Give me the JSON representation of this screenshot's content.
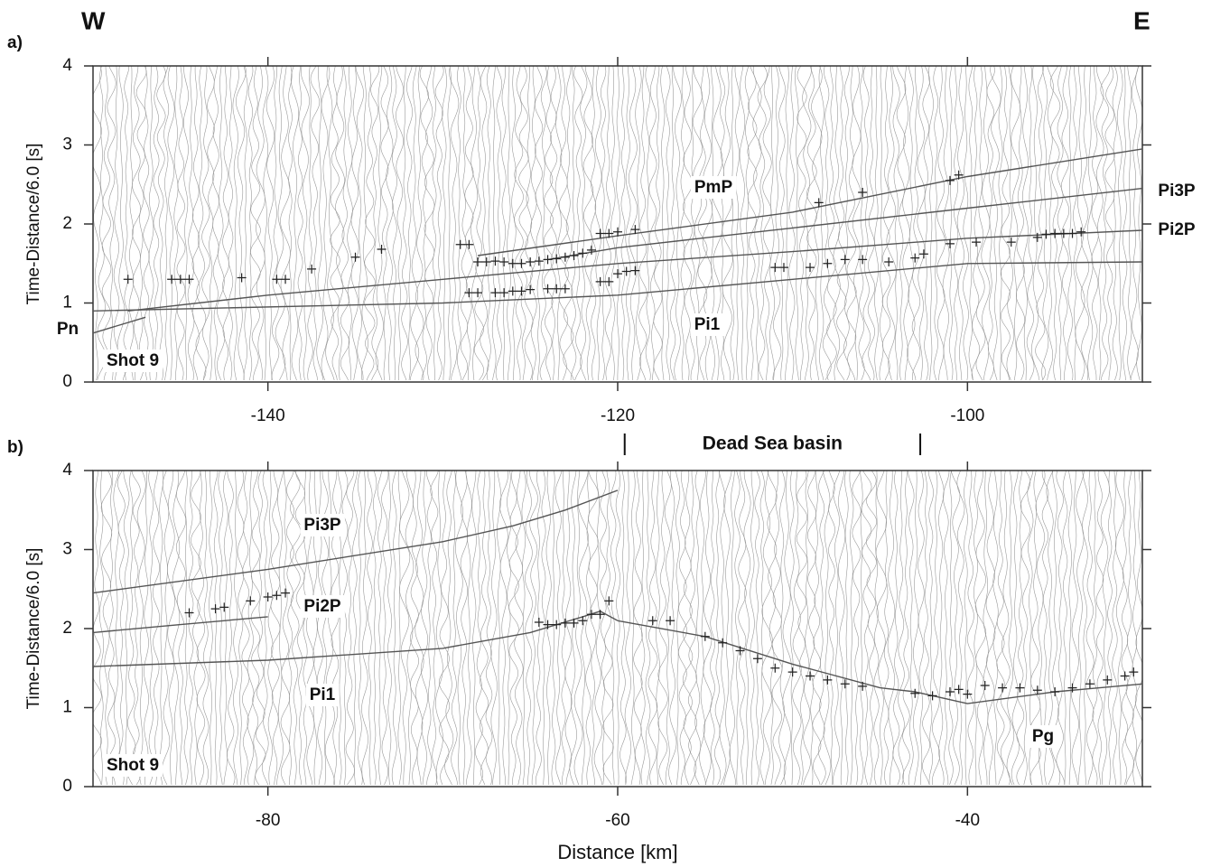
{
  "title_left": "W",
  "title_right": "E",
  "chart_data": [
    {
      "type": "line",
      "panel_label": "a)",
      "shot_label": "Shot 9",
      "y_label": "Time-Distance/6.0 [s]",
      "xlim": [
        -150,
        -90
      ],
      "ylim": [
        0,
        4
      ],
      "xticks": [
        -140,
        -120,
        -100
      ],
      "yticks": [
        0,
        1,
        2,
        3,
        4
      ],
      "region": {
        "label": "Dead Sea basin",
        "range": [
          -119.6,
          -102.7
        ]
      },
      "series": [
        {
          "name": "Pn",
          "color": "#555555",
          "x": [
            -150,
            -147
          ],
          "values": [
            0.62,
            0.82
          ]
        },
        {
          "name": "Pi1",
          "color": "#555555",
          "x": [
            -150,
            -130,
            -120,
            -110,
            -100,
            -90
          ],
          "values": [
            0.9,
            1.0,
            1.1,
            1.3,
            1.5,
            1.52
          ]
        },
        {
          "name": "Pi2P",
          "color": "#555555",
          "x": [
            -148,
            -140,
            -130,
            -120,
            -110,
            -100,
            -90
          ],
          "values": [
            0.9,
            1.1,
            1.3,
            1.5,
            1.65,
            1.82,
            1.92
          ]
        },
        {
          "name": "Pi3P",
          "color": "#555555",
          "x": [
            -124,
            -120,
            -110,
            -100,
            -90
          ],
          "values": [
            1.55,
            1.7,
            1.95,
            2.2,
            2.45
          ]
        },
        {
          "name": "PmP",
          "color": "#555555",
          "x": [
            -128,
            -120,
            -110,
            -100,
            -90
          ],
          "values": [
            1.6,
            1.85,
            2.15,
            2.6,
            2.95
          ]
        }
      ],
      "picks": {
        "x": [
          -148,
          -145.5,
          -145,
          -144.5,
          -141.5,
          -139.5,
          -139,
          -137.5,
          -135,
          -133.5,
          -129,
          -128.5,
          -128,
          -127.5,
          -127,
          -126.5,
          -126,
          -125.5,
          -125,
          -124.5,
          -124,
          -123.5,
          -123,
          -122.5,
          -122,
          -121.5,
          -121,
          -120.5,
          -120,
          -119,
          -108.5,
          -106,
          -101,
          -100.5,
          -128.5,
          -128,
          -127,
          -126.5,
          -126,
          -125.5,
          -125,
          -124,
          -123.5,
          -123,
          -121,
          -120.5,
          -120,
          -119.5,
          -119,
          -111,
          -110.5,
          -109,
          -108,
          -107,
          -106,
          -104.5,
          -103,
          -102.5,
          -101,
          -99.5,
          -97.5,
          -96,
          -95.5,
          -95,
          -94.5,
          -94,
          -93.5
        ],
        "y": [
          1.3,
          1.3,
          1.3,
          1.3,
          1.32,
          1.3,
          1.3,
          1.43,
          1.58,
          1.68,
          1.74,
          1.74,
          1.52,
          1.52,
          1.53,
          1.52,
          1.5,
          1.5,
          1.52,
          1.53,
          1.55,
          1.56,
          1.58,
          1.6,
          1.63,
          1.67,
          1.88,
          1.88,
          1.9,
          1.93,
          2.27,
          2.4,
          2.55,
          2.62,
          1.13,
          1.13,
          1.13,
          1.13,
          1.15,
          1.15,
          1.17,
          1.18,
          1.18,
          1.18,
          1.27,
          1.27,
          1.37,
          1.4,
          1.41,
          1.45,
          1.45,
          1.45,
          1.5,
          1.55,
          1.55,
          1.52,
          1.57,
          1.62,
          1.75,
          1.77,
          1.77,
          1.83,
          1.87,
          1.88,
          1.88,
          1.88,
          1.9
        ]
      }
    },
    {
      "type": "line",
      "panel_label": "b)",
      "shot_label": "Shot 9",
      "y_label": "Time-Distance/6.0 [s]",
      "x_label": "Distance [km]",
      "xlim": [
        -90,
        -30
      ],
      "ylim": [
        0,
        4
      ],
      "xticks": [
        -80,
        -60,
        -40
      ],
      "yticks": [
        0,
        1,
        2,
        3,
        4
      ],
      "series": [
        {
          "name": "Pi3P",
          "color": "#555555",
          "x": [
            -90,
            -80,
            -70,
            -66,
            -63,
            -60
          ],
          "values": [
            2.45,
            2.75,
            3.1,
            3.3,
            3.5,
            3.75
          ]
        },
        {
          "name": "Pi2P",
          "color": "#555555",
          "x": [
            -90,
            -85,
            -80
          ],
          "values": [
            1.95,
            2.05,
            2.15
          ]
        },
        {
          "name": "Pi1",
          "color": "#555555",
          "x": [
            -90,
            -80,
            -70,
            -65,
            -62,
            -61,
            -60
          ],
          "values": [
            1.52,
            1.6,
            1.75,
            1.95,
            2.15,
            2.22,
            2.1
          ]
        },
        {
          "name": "Pg",
          "color": "#555555",
          "x": [
            -60,
            -55,
            -50,
            -45,
            -43,
            -40,
            -35,
            -30
          ],
          "values": [
            2.1,
            1.9,
            1.55,
            1.25,
            1.2,
            1.05,
            1.2,
            1.3
          ]
        }
      ],
      "picks": {
        "x": [
          -84.5,
          -83,
          -82.5,
          -81,
          -80,
          -79.5,
          -79,
          -64.5,
          -64,
          -63.5,
          -63,
          -62.5,
          -62,
          -61.5,
          -61,
          -60.5,
          -58,
          -57,
          -55,
          -54,
          -53,
          -52,
          -51,
          -50,
          -49,
          -48,
          -47,
          -46,
          -43,
          -42,
          -41,
          -40.5,
          -40,
          -39,
          -38,
          -37,
          -36,
          -35,
          -34,
          -33,
          -32,
          -31,
          -30.5
        ],
        "y": [
          2.2,
          2.25,
          2.27,
          2.35,
          2.4,
          2.42,
          2.45,
          2.08,
          2.05,
          2.05,
          2.07,
          2.07,
          2.1,
          2.18,
          2.18,
          2.35,
          2.1,
          2.1,
          1.9,
          1.82,
          1.72,
          1.62,
          1.5,
          1.45,
          1.4,
          1.35,
          1.3,
          1.27,
          1.18,
          1.15,
          1.2,
          1.23,
          1.17,
          1.28,
          1.25,
          1.25,
          1.22,
          1.2,
          1.25,
          1.3,
          1.35,
          1.4,
          1.45
        ]
      }
    }
  ]
}
